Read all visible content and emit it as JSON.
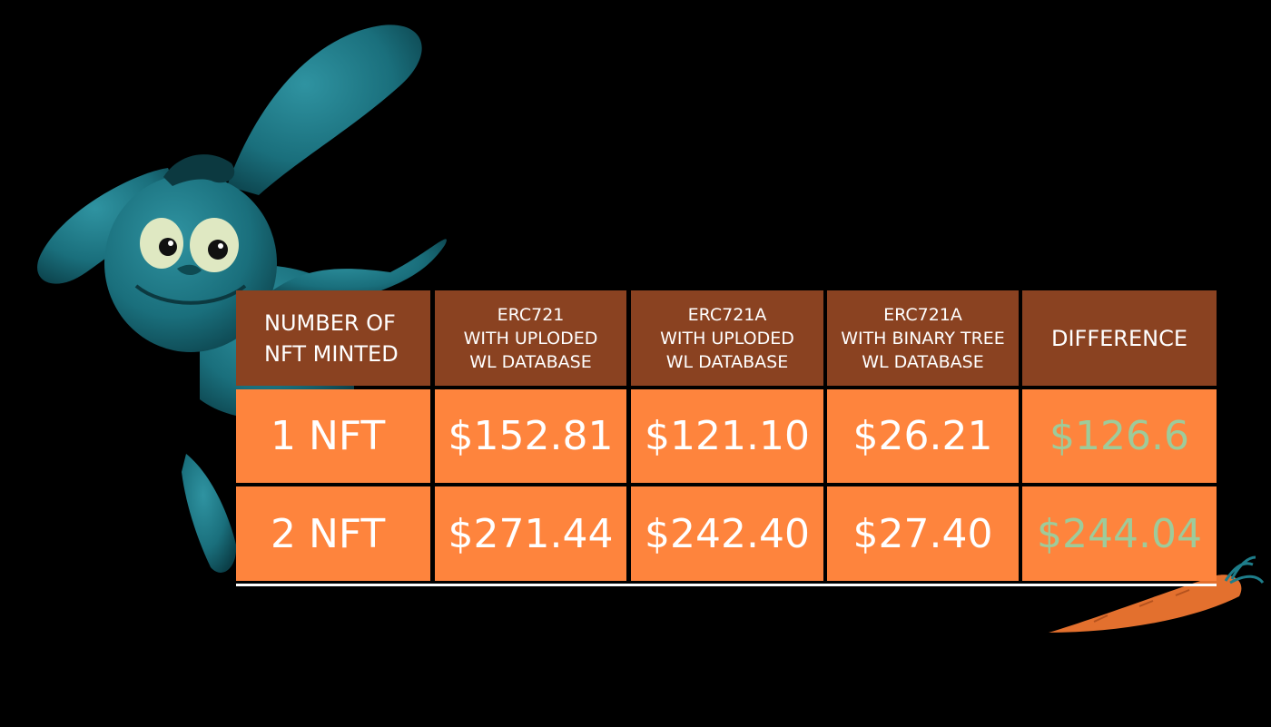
{
  "colors": {
    "background": "#000000",
    "header_bg": "#8a4221",
    "cell_bg": "#fe843d",
    "text": "#ffffff",
    "difference_text": "#9ecb9a",
    "bunny": "#1a6f7c",
    "carrot": "#e3702e"
  },
  "icons": {
    "mascot": "bunny-mascot-icon",
    "carrot": "carrot-icon"
  },
  "table": {
    "headers": [
      "NUMBER OF\nNFT MINTED",
      "ERC721\nWITH UPLODED\nWL DATABASE",
      "ERC721A\nWITH UPLODED\nWL DATABASE",
      "ERC721A\nWITH BINARY TREE\nWL DATABASE",
      "DIFFERENCE"
    ],
    "rows": [
      {
        "label": "1 NFT",
        "erc721": "$152.81",
        "erc721a": "$121.10",
        "binary_tree": "$26.21",
        "difference": "$126.6"
      },
      {
        "label": "2 NFT",
        "erc721": "$271.44",
        "erc721a": "$242.40",
        "binary_tree": "$27.40",
        "difference": "$244.04"
      }
    ]
  }
}
